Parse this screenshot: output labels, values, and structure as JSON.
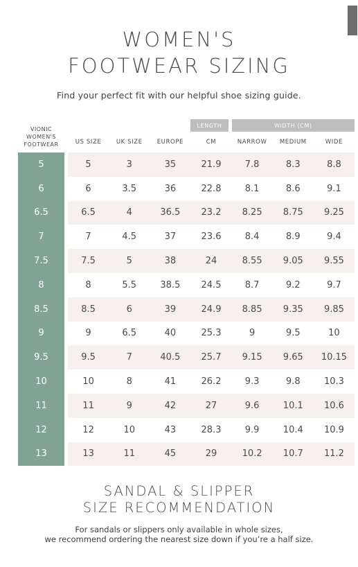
{
  "title": {
    "line1": "WOMEN'S",
    "line2": "FOOTWEAR SIZING"
  },
  "subtitle": "Find your perfect fit with our helpful shoe sizing guide.",
  "table": {
    "group_headers": {
      "length": "LENGTH",
      "width": "WIDTH (CM)"
    },
    "vionic_header": [
      "VIONIC",
      "WOMEN'S",
      "FOOTWEAR"
    ],
    "columns": [
      "US SIZE",
      "UK SIZE",
      "EUROPE",
      "CM",
      "NARROW",
      "MEDIUM",
      "WIDE"
    ],
    "rows": [
      [
        "5",
        "5",
        "3",
        "35",
        "21.9",
        "7.8",
        "8.3",
        "8.8"
      ],
      [
        "6",
        "6",
        "3.5",
        "36",
        "22.8",
        "8.1",
        "8.6",
        "9.1"
      ],
      [
        "6.5",
        "6.5",
        "4",
        "36.5",
        "23.2",
        "8.25",
        "8.75",
        "9.25"
      ],
      [
        "7",
        "7",
        "4.5",
        "37",
        "23.6",
        "8.4",
        "8.9",
        "9.4"
      ],
      [
        "7.5",
        "7.5",
        "5",
        "38",
        "24",
        "8.55",
        "9.05",
        "9.55"
      ],
      [
        "8",
        "8",
        "5.5",
        "38.5",
        "24.5",
        "8.7",
        "9.2",
        "9.7"
      ],
      [
        "8.5",
        "8.5",
        "6",
        "39",
        "24.9",
        "8.85",
        "9.35",
        "9.85"
      ],
      [
        "9",
        "9",
        "6.5",
        "40",
        "25.3",
        "9",
        "9.5",
        "10"
      ],
      [
        "9.5",
        "9.5",
        "7",
        "40.5",
        "25.7",
        "9.15",
        "9.65",
        "10.15"
      ],
      [
        "10",
        "10",
        "8",
        "41",
        "26.2",
        "9.3",
        "9.8",
        "10.3"
      ],
      [
        "11",
        "11",
        "9",
        "42",
        "27",
        "9.6",
        "10.1",
        "10.6"
      ],
      [
        "12",
        "12",
        "10",
        "43",
        "28.3",
        "9.9",
        "10.4",
        "10.9"
      ],
      [
        "13",
        "13",
        "11",
        "45",
        "29",
        "10.2",
        "10.7",
        "11.2"
      ]
    ]
  },
  "sandal": {
    "title_line1": "SANDAL & SLIPPER",
    "title_line2": "SIZE RECOMMENDATION",
    "note_line1": "For sandals or slippers only available in whole sizes,",
    "note_line2": "we recommend ordering the nearest size down if you’re a half size."
  },
  "colors": {
    "accent_green": "#83a296",
    "row_tint": "#f6f1ee",
    "header_gray": "#bdbdbd"
  }
}
